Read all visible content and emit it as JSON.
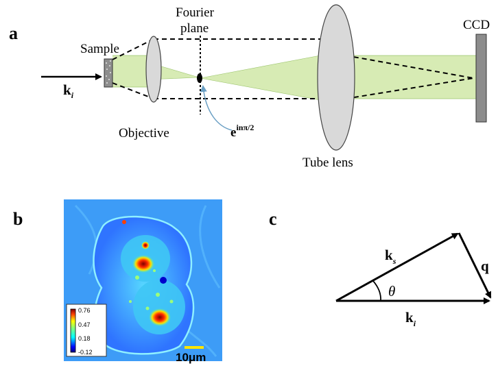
{
  "panel_a": {
    "label": "a",
    "sample_label": "Sample",
    "objective_label": "Objective",
    "fourier_label_line1": "Fourier",
    "fourier_label_line2": "plane",
    "phase_label_base": "e",
    "phase_label_sup": "inπ/2",
    "tube_lens_label": "Tube lens",
    "ccd_label": "CCD",
    "ki_main": "k",
    "ki_sub": "i"
  },
  "panel_b": {
    "label": "b",
    "colorbar_ticks": [
      "0.76",
      "0.47",
      "0.18",
      "-0.12"
    ],
    "scale_bar_label": "10μm"
  },
  "panel_c": {
    "label": "c",
    "ks_main": "k",
    "ks_sub": "s",
    "ki_main": "k",
    "ki_sub": "i",
    "q_label": "q",
    "theta_label": "θ"
  },
  "colors": {
    "beam_fill": "#d7ebb4",
    "beam_stroke": "#9bc46c",
    "lens_fill": "#d9d9d9",
    "ccd_fill": "#8c8c8c",
    "scale_bar": "#ffe600",
    "leader_line": "#6a9fc4"
  }
}
